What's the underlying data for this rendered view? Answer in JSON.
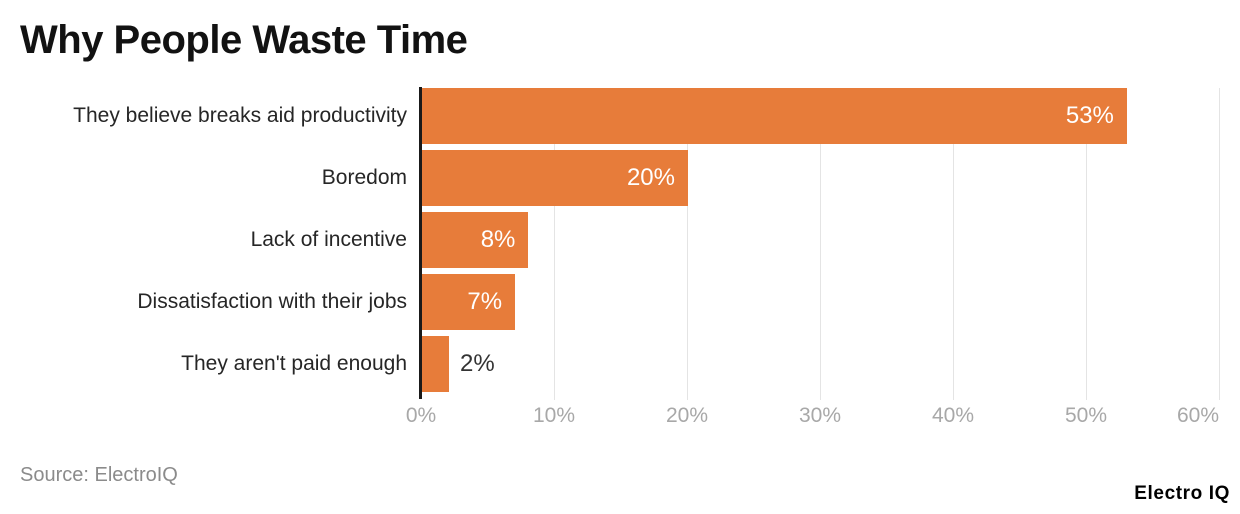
{
  "title": "Why People Waste Time",
  "source": "Source: ElectroIQ",
  "brand": "Electro IQ",
  "colors": {
    "bar": "#E77C3A",
    "axis_line": "#1A1A1A",
    "gridline": "#E4E4E4",
    "tick_label": "#A8A8A8",
    "label": "#262626",
    "title": "#121212",
    "source": "#8B8B8B",
    "value_inside": "#FFFFFF",
    "value_outside": "#333333",
    "brand": "#000000"
  },
  "chart_data": {
    "type": "bar",
    "orientation": "horizontal",
    "title": "Why People Waste Time",
    "categories": [
      "They believe breaks aid productivity",
      "Boredom",
      "Lack of incentive",
      "Dissatisfaction with their jobs",
      "They aren't paid enough"
    ],
    "values": [
      53,
      20,
      8,
      7,
      2
    ],
    "value_labels": [
      "53%",
      "20%",
      "8%",
      "7%",
      "2%"
    ],
    "xlim": [
      0,
      60
    ],
    "tick_values": [
      0,
      10,
      20,
      30,
      40,
      50,
      60
    ],
    "ticks": [
      "0%",
      "10%",
      "20%",
      "30%",
      "40%",
      "50%",
      "60%"
    ],
    "grid": true,
    "legend": false
  }
}
